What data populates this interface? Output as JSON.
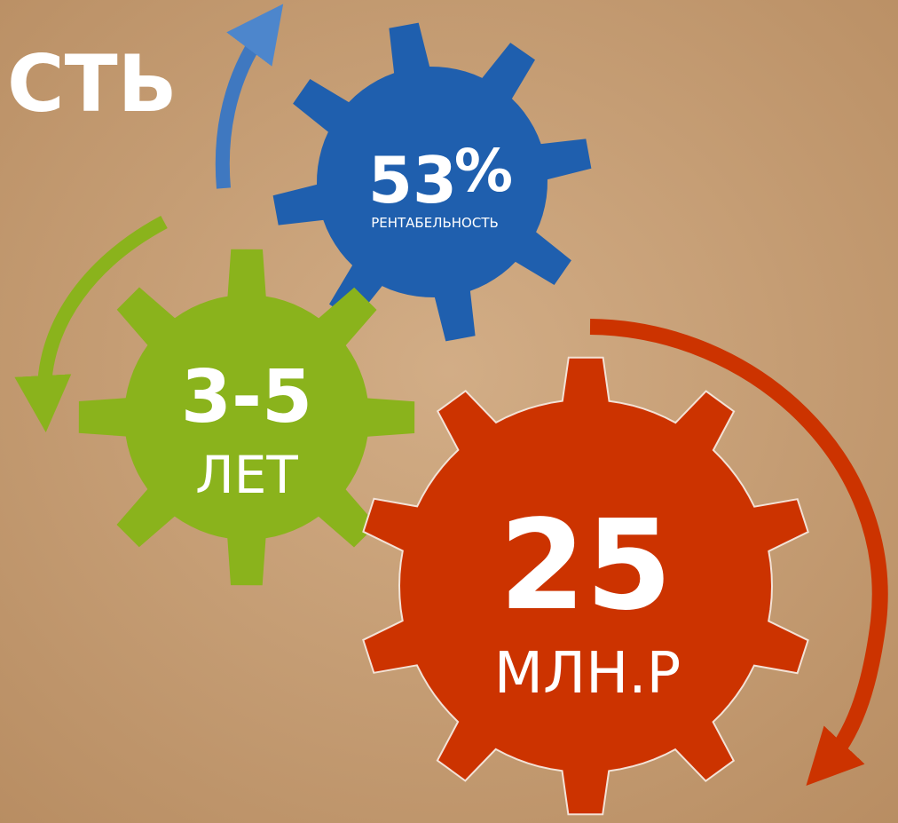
{
  "heading": "СТЬ",
  "gears": [
    {
      "value": "53",
      "unit": "%",
      "label": "РЕНТАБЕЛЬНОСТЬ"
    },
    {
      "value": "3-5",
      "label": "ЛЕТ"
    },
    {
      "value": "25",
      "label": "МЛН.Р"
    }
  ]
}
